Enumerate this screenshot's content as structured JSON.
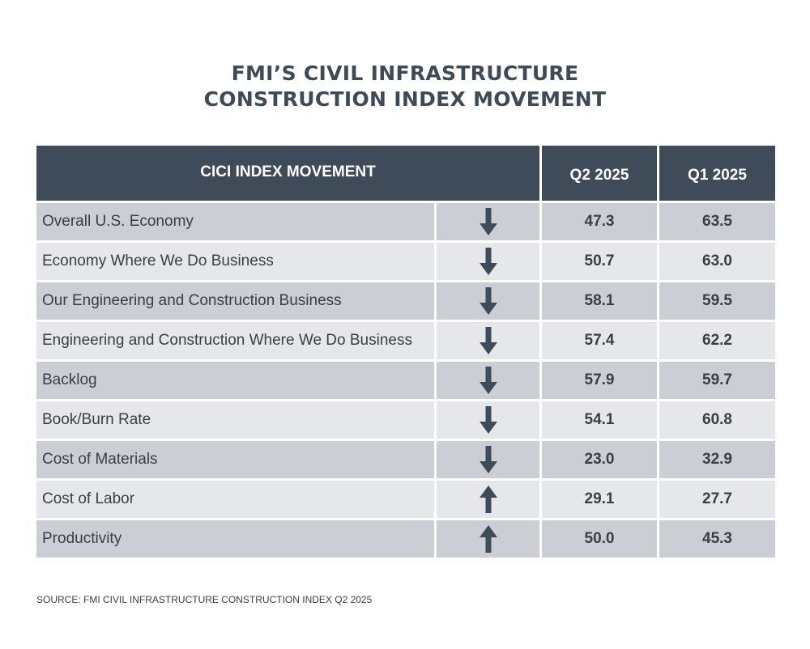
{
  "title_line1": "FMI’S CIVIL INFRASTRUCTURE",
  "title_line2": "CONSTRUCTION INDEX MOVEMENT",
  "header": {
    "label": "CICI INDEX MOVEMENT",
    "q2": "Q2 2025",
    "q1": "Q1 2025"
  },
  "colors": {
    "header_bg": "#3f4b58",
    "row_dark": "#cbced4",
    "row_light": "#e6e7ea",
    "arrow": "#3f4b58",
    "title": "#3d4a57"
  },
  "chart_data": {
    "type": "table",
    "columns": [
      "CICI INDEX MOVEMENT",
      "",
      "Q2 2025",
      "Q1 2025"
    ],
    "rows": [
      {
        "label": "Overall U.S. Economy",
        "direction": "down",
        "q2": "47.3",
        "q1": "63.5"
      },
      {
        "label": "Economy Where We Do Business",
        "direction": "down",
        "q2": "50.7",
        "q1": "63.0"
      },
      {
        "label": "Our Engineering and Construction Business",
        "direction": "down",
        "q2": "58.1",
        "q1": "59.5"
      },
      {
        "label": "Engineering and Construction Where We Do Business",
        "direction": "down",
        "q2": "57.4",
        "q1": "62.2"
      },
      {
        "label": "Backlog",
        "direction": "down",
        "q2": "57.9",
        "q1": "59.7"
      },
      {
        "label": "Book/Burn Rate",
        "direction": "down",
        "q2": "54.1",
        "q1": "60.8"
      },
      {
        "label": "Cost of Materials",
        "direction": "down",
        "q2": "23.0",
        "q1": "32.9"
      },
      {
        "label": "Cost of Labor",
        "direction": "up",
        "q2": "29.1",
        "q1": "27.7"
      },
      {
        "label": "Productivity",
        "direction": "up",
        "q2": "50.0",
        "q1": "45.3"
      }
    ]
  },
  "source": "SOURCE: FMI CIVIL INFRASTRUCTURE CONSTRUCTION INDEX Q2 2025"
}
